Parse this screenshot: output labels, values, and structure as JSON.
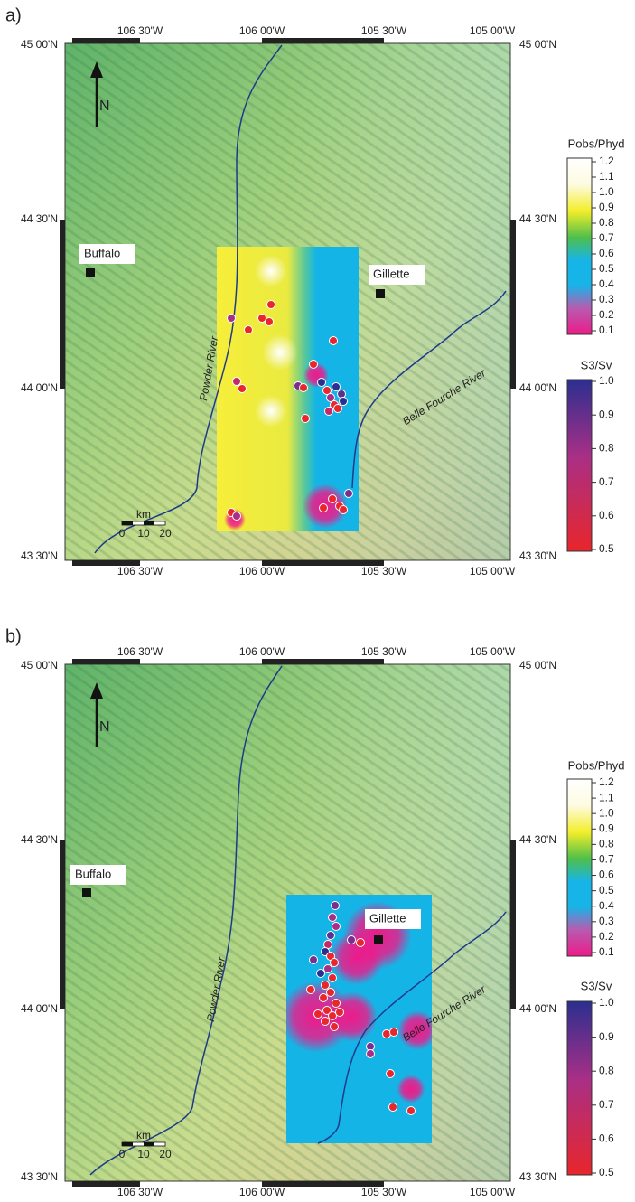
{
  "panels": [
    {
      "label": "a)",
      "lon_labels": [
        "106 30'W",
        "106 00'W",
        "105 30'W",
        "105 00'W"
      ],
      "lat_labels": [
        "45 00'N",
        "44 30'N",
        "44 00'N",
        "43 30'N"
      ],
      "places": [
        "Buffalo",
        "Gillette"
      ],
      "rivers": [
        "Powder River",
        "Belle Fourche River"
      ],
      "scale": {
        "unit": "km",
        "ticks": [
          "0",
          "10",
          "20"
        ]
      },
      "north": "N",
      "legends": [
        {
          "title": "Pobs/Phyd",
          "ticks": [
            "1.2",
            "1.1",
            "1.0",
            "0.9",
            "0.8",
            "0.7",
            "0.6",
            "0.5",
            "0.4",
            "0.3",
            "0.2",
            "0.1"
          ]
        },
        {
          "title": "S3/Sv",
          "ticks": [
            "1.0",
            "0.9",
            "0.8",
            "0.7",
            "0.6",
            "0.5"
          ]
        }
      ]
    },
    {
      "label": "b)",
      "lon_labels": [
        "106 30'W",
        "106 00'W",
        "105 30'W",
        "105 00'W"
      ],
      "lat_labels": [
        "45 00'N",
        "44 30'N",
        "44 00'N",
        "43 30'N"
      ],
      "places": [
        "Buffalo",
        "Gillette"
      ],
      "rivers": [
        "Powder River",
        "Belle Fourche River"
      ],
      "scale": {
        "unit": "km",
        "ticks": [
          "0",
          "10",
          "20"
        ]
      },
      "north": "N",
      "legends": [
        {
          "title": "Pobs/Phyd",
          "ticks": [
            "1.2",
            "1.1",
            "1.0",
            "0.9",
            "0.8",
            "0.7",
            "0.6",
            "0.5",
            "0.4",
            "0.3",
            "0.2",
            "0.1"
          ]
        },
        {
          "title": "S3/Sv",
          "ticks": [
            "1.0",
            "0.9",
            "0.8",
            "0.7",
            "0.6",
            "0.5"
          ]
        }
      ]
    }
  ]
}
